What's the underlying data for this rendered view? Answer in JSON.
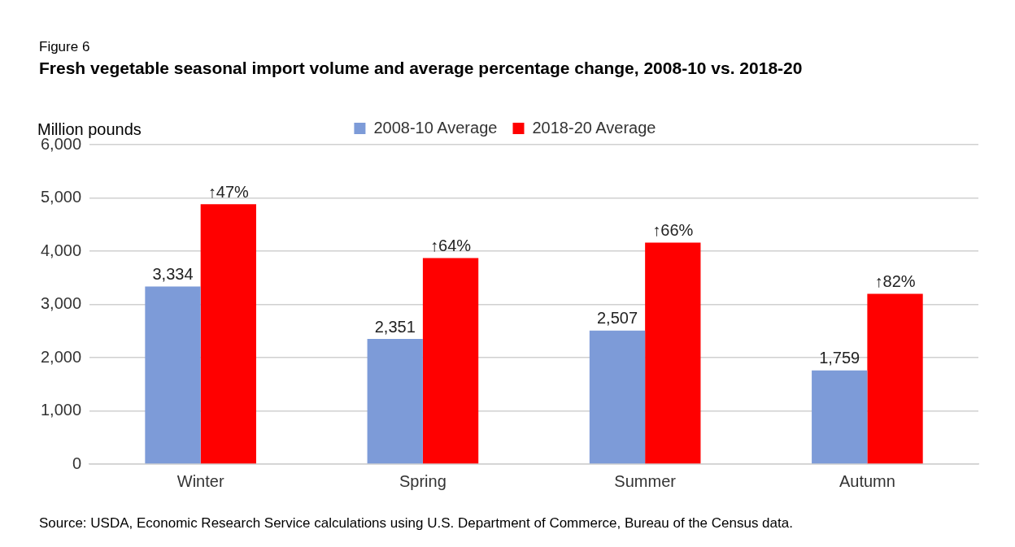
{
  "chart_data": {
    "type": "bar",
    "title": "Fresh vegetable seasonal import volume and average percentage change, 2008-10 vs. 2018-20",
    "ylabel": "Million pounds",
    "annotations": [
      "Figure 6",
      "Source: USDA, Economic Research Service calculations using U.S. Department of Commerce, Bureau of the Census data.",
      {
        "text": "↑47%",
        "x": "Winter",
        "y": 4880
      },
      {
        "text": "↑64%",
        "x": "Spring",
        "y": 3870
      },
      {
        "text": "↑66%",
        "x": "Summer",
        "y": 4160
      },
      {
        "text": "↑82%",
        "x": "Autumn",
        "y": 3200
      }
    ],
    "categories": [
      "Winter",
      "Spring",
      "Summer",
      "Autumn"
    ],
    "series": [
      {
        "name": "2008-10 Average",
        "color": "#7d9bd8",
        "values": [
          3334,
          2351,
          2507,
          1759
        ],
        "value_labels": [
          "3,334",
          "2,351",
          "2,507",
          "1,759"
        ]
      },
      {
        "name": "2018-20 Average",
        "color": "#ff0000",
        "values": [
          4880,
          3870,
          4160,
          3200
        ]
      }
    ],
    "ylim": [
      0,
      6000
    ],
    "yticks": [
      0,
      {
        "value": 1000,
        "label": "1,000"
      },
      {
        "value": 2000,
        "label": "2,000"
      },
      {
        "value": 3000,
        "label": "3,000"
      },
      {
        "value": 4000,
        "label": "4,000"
      },
      {
        "value": 5000,
        "label": "5,000"
      },
      {
        "value": 6000,
        "label": "6,000"
      }
    ],
    "grid": "y",
    "legend": "top"
  }
}
